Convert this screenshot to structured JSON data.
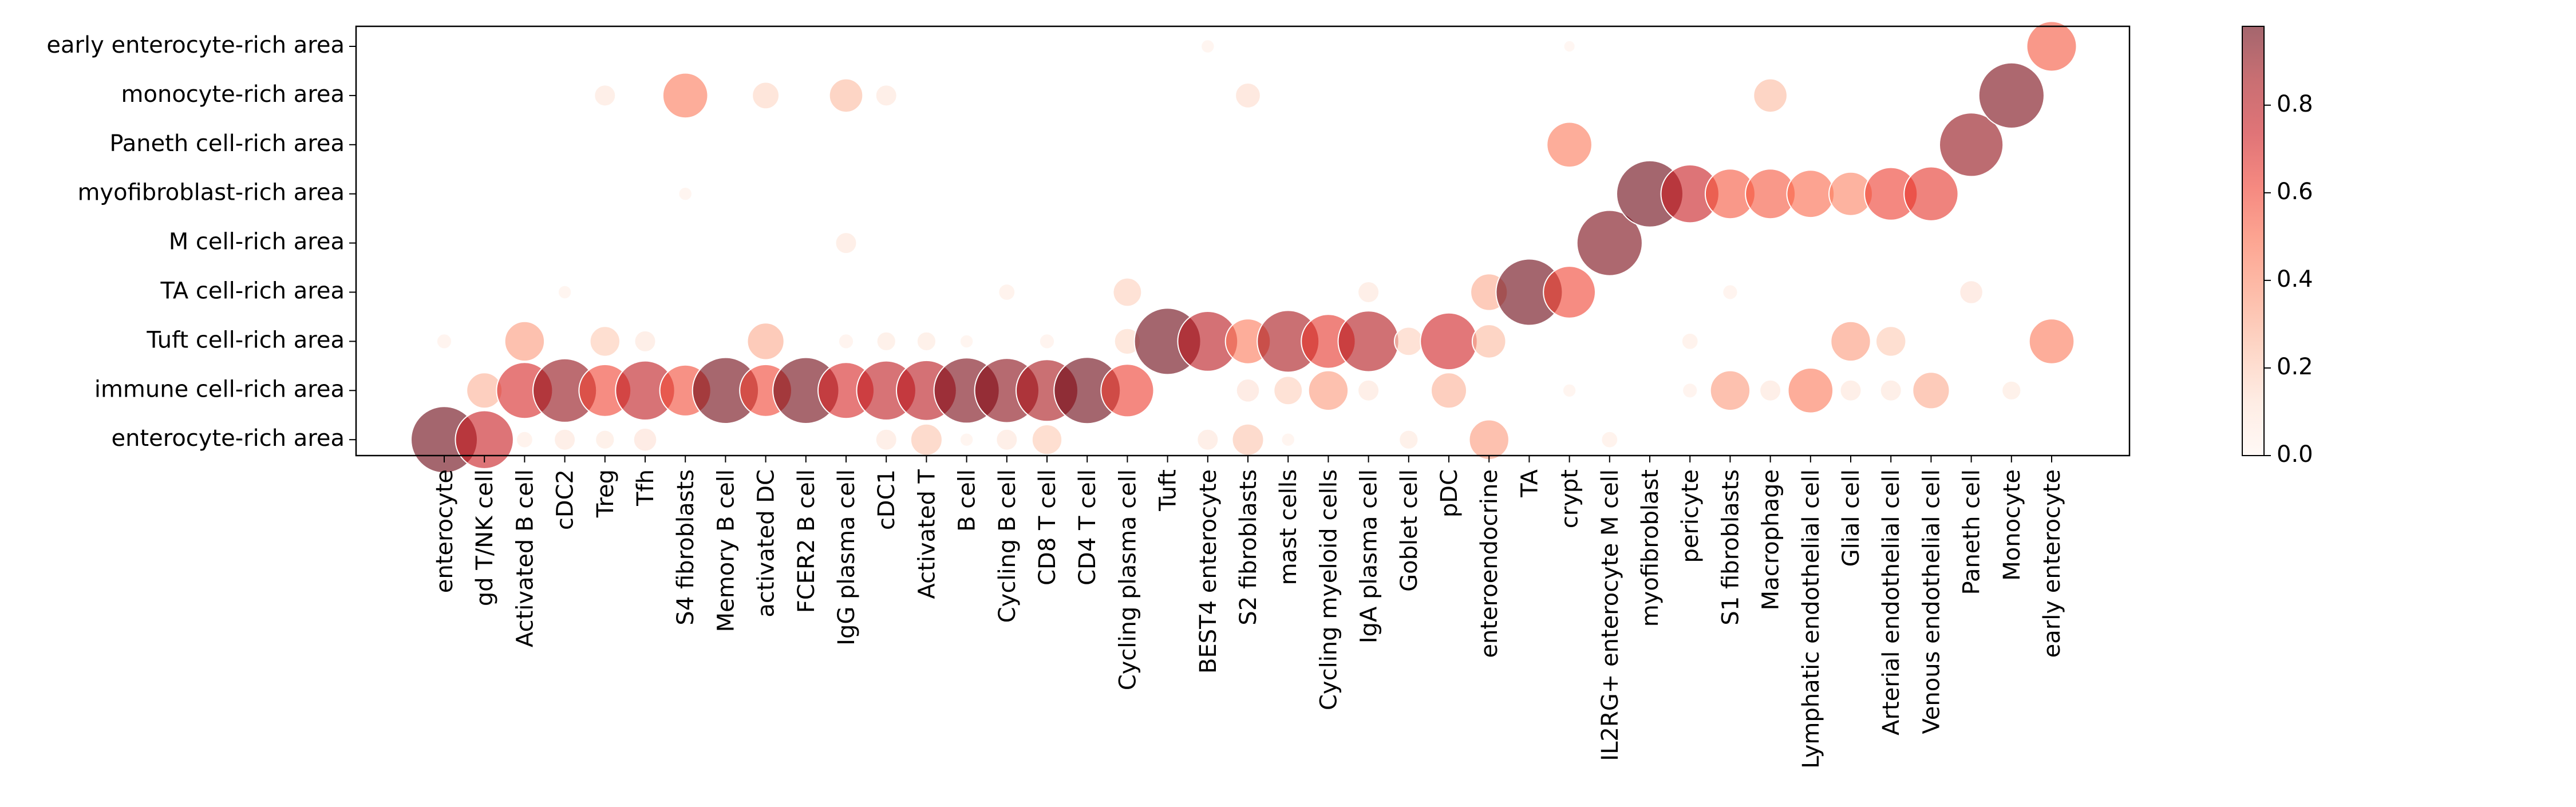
{
  "chart_data": {
    "type": "scatter",
    "subtype": "dot-plot",
    "rows": [
      "early enterocyte-rich area",
      "monocyte-rich area",
      "Paneth cell-rich area",
      "myofibroblast-rich area",
      "M cell-rich area",
      "TA cell-rich area",
      "Tuft cell-rich area",
      "immune cell-rich area",
      "enterocyte-rich area"
    ],
    "columns": [
      "enterocyte",
      "gd T/NK cell",
      "Activated B cell",
      "cDC2",
      "Treg",
      "Tfh",
      "S4 fibroblasts",
      "Memory B cell",
      "activated DC",
      "FCER2 B cell",
      "IgG plasma cell",
      "cDC1",
      "Activated T",
      "B cell",
      "Cycling B cell",
      "CD8 T cell",
      "CD4 T cell",
      "Cycling plasma cell",
      "Tuft",
      "BEST4 enterocyte",
      "S2 fibroblasts",
      "mast cells",
      "Cycling myeloid cells",
      "IgA plasma cell",
      "Goblet cell",
      "pDC",
      "enteroendocrine",
      "TA",
      "crypt",
      "IL2RG+ enterocyte M cell",
      "myofibroblast",
      "pericyte",
      "S1 fibroblasts",
      "Macrophage",
      "Lymphatic endothelial cell",
      "Glial cell",
      "Arterial endothelial cell",
      "Venous endothelial cell",
      "Paneth cell",
      "Monocyte",
      "early enterocyte"
    ],
    "points": [
      {
        "x": "enterocyte",
        "y": "enterocyte-rich area",
        "value": 0.98
      },
      {
        "x": "enterocyte",
        "y": "Tuft cell-rich area",
        "value": 0.05
      },
      {
        "x": "gd T/NK cell",
        "y": "enterocyte-rich area",
        "value": 0.75
      },
      {
        "x": "gd T/NK cell",
        "y": "immune cell-rich area",
        "value": 0.28
      },
      {
        "x": "Activated B cell",
        "y": "immune cell-rich area",
        "value": 0.7
      },
      {
        "x": "Activated B cell",
        "y": "Tuft cell-rich area",
        "value": 0.35
      },
      {
        "x": "Activated B cell",
        "y": "enterocyte-rich area",
        "value": 0.06
      },
      {
        "x": "cDC2",
        "y": "immune cell-rich area",
        "value": 0.9
      },
      {
        "x": "cDC2",
        "y": "enterocyte-rich area",
        "value": 0.1
      },
      {
        "x": "cDC2",
        "y": "TA cell-rich area",
        "value": 0.04
      },
      {
        "x": "Treg",
        "y": "immune cell-rich area",
        "value": 0.6
      },
      {
        "x": "Treg",
        "y": "Tuft cell-rich area",
        "value": 0.2
      },
      {
        "x": "Treg",
        "y": "monocyte-rich area",
        "value": 0.1
      },
      {
        "x": "Treg",
        "y": "enterocyte-rich area",
        "value": 0.08
      },
      {
        "x": "Tfh",
        "y": "immune cell-rich area",
        "value": 0.78
      },
      {
        "x": "Tfh",
        "y": "Tuft cell-rich area",
        "value": 0.1
      },
      {
        "x": "Tfh",
        "y": "enterocyte-rich area",
        "value": 0.12
      },
      {
        "x": "S4 fibroblasts",
        "y": "immune cell-rich area",
        "value": 0.58
      },
      {
        "x": "S4 fibroblasts",
        "y": "monocyte-rich area",
        "value": 0.45
      },
      {
        "x": "S4 fibroblasts",
        "y": "myofibroblast-rich area",
        "value": 0.04
      },
      {
        "x": "Memory B cell",
        "y": "immune cell-rich area",
        "value": 0.97
      },
      {
        "x": "activated DC",
        "y": "immune cell-rich area",
        "value": 0.6
      },
      {
        "x": "activated DC",
        "y": "Tuft cell-rich area",
        "value": 0.3
      },
      {
        "x": "activated DC",
        "y": "monocyte-rich area",
        "value": 0.16
      },
      {
        "x": "FCER2 B cell",
        "y": "immune cell-rich area",
        "value": 0.97
      },
      {
        "x": "IgG plasma cell",
        "y": "immune cell-rich area",
        "value": 0.7
      },
      {
        "x": "IgG plasma cell",
        "y": "monocyte-rich area",
        "value": 0.25
      },
      {
        "x": "IgG plasma cell",
        "y": "M cell-rich area",
        "value": 0.1
      },
      {
        "x": "IgG plasma cell",
        "y": "Tuft cell-rich area",
        "value": 0.05
      },
      {
        "x": "cDC1",
        "y": "immune cell-rich area",
        "value": 0.78
      },
      {
        "x": "cDC1",
        "y": "monocyte-rich area",
        "value": 0.1
      },
      {
        "x": "cDC1",
        "y": "Tuft cell-rich area",
        "value": 0.08
      },
      {
        "x": "cDC1",
        "y": "enterocyte-rich area",
        "value": 0.1
      },
      {
        "x": "Activated T",
        "y": "immune cell-rich area",
        "value": 0.8
      },
      {
        "x": "Activated T",
        "y": "enterocyte-rich area",
        "value": 0.22
      },
      {
        "x": "Activated T",
        "y": "Tuft cell-rich area",
        "value": 0.08
      },
      {
        "x": "B cell",
        "y": "immune cell-rich area",
        "value": 0.95
      },
      {
        "x": "B cell",
        "y": "Tuft cell-rich area",
        "value": 0.04
      },
      {
        "x": "B cell",
        "y": "enterocyte-rich area",
        "value": 0.04
      },
      {
        "x": "Cycling B cell",
        "y": "immune cell-rich area",
        "value": 0.92
      },
      {
        "x": "Cycling B cell",
        "y": "TA cell-rich area",
        "value": 0.06
      },
      {
        "x": "Cycling B cell",
        "y": "enterocyte-rich area",
        "value": 0.1
      },
      {
        "x": "CD8 T cell",
        "y": "immune cell-rich area",
        "value": 0.85
      },
      {
        "x": "CD8 T cell",
        "y": "enterocyte-rich area",
        "value": 0.2
      },
      {
        "x": "CD8 T cell",
        "y": "Tuft cell-rich area",
        "value": 0.05
      },
      {
        "x": "CD4 T cell",
        "y": "immune cell-rich area",
        "value": 0.98
      },
      {
        "x": "Cycling plasma cell",
        "y": "immune cell-rich area",
        "value": 0.62
      },
      {
        "x": "Cycling plasma cell",
        "y": "TA cell-rich area",
        "value": 0.18
      },
      {
        "x": "Cycling plasma cell",
        "y": "Tuft cell-rich area",
        "value": 0.15
      },
      {
        "x": "Tuft",
        "y": "Tuft cell-rich area",
        "value": 0.98
      },
      {
        "x": "BEST4 enterocyte",
        "y": "Tuft cell-rich area",
        "value": 0.8
      },
      {
        "x": "BEST4 enterocyte",
        "y": "enterocyte-rich area",
        "value": 0.1
      },
      {
        "x": "BEST4 enterocyte",
        "y": "early enterocyte-rich area",
        "value": 0.04
      },
      {
        "x": "S2 fibroblasts",
        "y": "Tuft cell-rich area",
        "value": 0.45
      },
      {
        "x": "S2 fibroblasts",
        "y": "enterocyte-rich area",
        "value": 0.22
      },
      {
        "x": "S2 fibroblasts",
        "y": "monocyte-rich area",
        "value": 0.14
      },
      {
        "x": "S2 fibroblasts",
        "y": "immune cell-rich area",
        "value": 0.12
      },
      {
        "x": "mast cells",
        "y": "Tuft cell-rich area",
        "value": 0.85
      },
      {
        "x": "mast cells",
        "y": "immune cell-rich area",
        "value": 0.18
      },
      {
        "x": "mast cells",
        "y": "enterocyte-rich area",
        "value": 0.04
      },
      {
        "x": "Cycling myeloid cells",
        "y": "Tuft cell-rich area",
        "value": 0.65
      },
      {
        "x": "Cycling myeloid cells",
        "y": "immune cell-rich area",
        "value": 0.35
      },
      {
        "x": "IgA plasma cell",
        "y": "Tuft cell-rich area",
        "value": 0.82
      },
      {
        "x": "IgA plasma cell",
        "y": "TA cell-rich area",
        "value": 0.1
      },
      {
        "x": "IgA plasma cell",
        "y": "immune cell-rich area",
        "value": 0.1
      },
      {
        "x": "Goblet cell",
        "y": "Tuft cell-rich area",
        "value": 0.18
      },
      {
        "x": "Goblet cell",
        "y": "enterocyte-rich area",
        "value": 0.08
      },
      {
        "x": "pDC",
        "y": "Tuft cell-rich area",
        "value": 0.72
      },
      {
        "x": "pDC",
        "y": "immune cell-rich area",
        "value": 0.28
      },
      {
        "x": "enteroendocrine",
        "y": "enterocyte-rich area",
        "value": 0.35
      },
      {
        "x": "enteroendocrine",
        "y": "TA cell-rich area",
        "value": 0.3
      },
      {
        "x": "enteroendocrine",
        "y": "Tuft cell-rich area",
        "value": 0.25
      },
      {
        "x": "TA",
        "y": "TA cell-rich area",
        "value": 0.98
      },
      {
        "x": "crypt",
        "y": "TA cell-rich area",
        "value": 0.6
      },
      {
        "x": "crypt",
        "y": "Paneth cell-rich area",
        "value": 0.45
      },
      {
        "x": "crypt",
        "y": "immune cell-rich area",
        "value": 0.04
      },
      {
        "x": "crypt",
        "y": "early enterocyte-rich area",
        "value": 0.03
      },
      {
        "x": "IL2RG+ enterocyte M cell",
        "y": "M cell-rich area",
        "value": 0.95
      },
      {
        "x": "IL2RG+ enterocyte M cell",
        "y": "enterocyte-rich area",
        "value": 0.06
      },
      {
        "x": "myofibroblast",
        "y": "myofibroblast-rich area",
        "value": 0.98
      },
      {
        "x": "pericyte",
        "y": "myofibroblast-rich area",
        "value": 0.75
      },
      {
        "x": "pericyte",
        "y": "Tuft cell-rich area",
        "value": 0.06
      },
      {
        "x": "pericyte",
        "y": "immune cell-rich area",
        "value": 0.05
      },
      {
        "x": "S1 fibroblasts",
        "y": "myofibroblast-rich area",
        "value": 0.55
      },
      {
        "x": "S1 fibroblasts",
        "y": "immune cell-rich area",
        "value": 0.35
      },
      {
        "x": "S1 fibroblasts",
        "y": "TA cell-rich area",
        "value": 0.05
      },
      {
        "x": "Macrophage",
        "y": "myofibroblast-rich area",
        "value": 0.55
      },
      {
        "x": "Macrophage",
        "y": "monocyte-rich area",
        "value": 0.25
      },
      {
        "x": "Macrophage",
        "y": "immune cell-rich area",
        "value": 0.1
      },
      {
        "x": "Lymphatic endothelial cell",
        "y": "myofibroblast-rich area",
        "value": 0.5
      },
      {
        "x": "Lymphatic endothelial cell",
        "y": "immune cell-rich area",
        "value": 0.45
      },
      {
        "x": "Glial cell",
        "y": "myofibroblast-rich area",
        "value": 0.42
      },
      {
        "x": "Glial cell",
        "y": "Tuft cell-rich area",
        "value": 0.35
      },
      {
        "x": "Glial cell",
        "y": "immune cell-rich area",
        "value": 0.1
      },
      {
        "x": "Arterial endothelial cell",
        "y": "myofibroblast-rich area",
        "value": 0.62
      },
      {
        "x": "Arterial endothelial cell",
        "y": "Tuft cell-rich area",
        "value": 0.2
      },
      {
        "x": "Arterial endothelial cell",
        "y": "immune cell-rich area",
        "value": 0.1
      },
      {
        "x": "Venous endothelial cell",
        "y": "myofibroblast-rich area",
        "value": 0.65
      },
      {
        "x": "Venous endothelial cell",
        "y": "immune cell-rich area",
        "value": 0.3
      },
      {
        "x": "Paneth cell",
        "y": "Paneth cell-rich area",
        "value": 0.9
      },
      {
        "x": "Paneth cell",
        "y": "TA cell-rich area",
        "value": 0.12
      },
      {
        "x": "Monocyte",
        "y": "monocyte-rich area",
        "value": 0.95
      },
      {
        "x": "Monocyte",
        "y": "immune cell-rich area",
        "value": 0.08
      },
      {
        "x": "early enterocyte",
        "y": "early enterocyte-rich area",
        "value": 0.55
      },
      {
        "x": "early enterocyte",
        "y": "Tuft cell-rich area",
        "value": 0.45
      }
    ],
    "colorbar": {
      "min": 0.0,
      "max": 0.98,
      "ticks": [
        "0.0",
        "0.2",
        "0.4",
        "0.6",
        "0.8"
      ],
      "colormap": "Reds",
      "dot_alpha": 0.6,
      "colors": [
        "#fff5f0",
        "#fee0d2",
        "#fcbba1",
        "#fc9272",
        "#fb6a4a",
        "#ef3b2c",
        "#cb181d",
        "#a50f15",
        "#67000d"
      ]
    },
    "title": "",
    "xlabel": "",
    "ylabel": "",
    "grid": false,
    "legend": "colorbar-right"
  }
}
